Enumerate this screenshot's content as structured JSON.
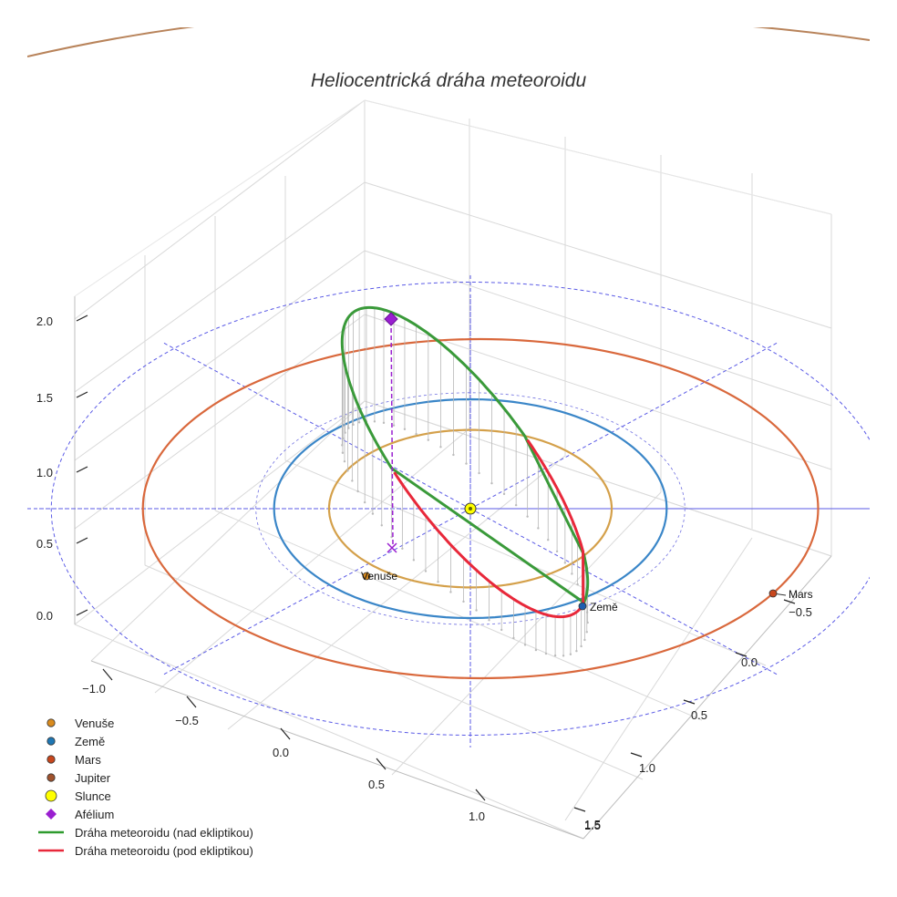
{
  "chart_data": {
    "type": "3d-orbit-plot",
    "title": "Heliocentrická dráha meteoroidu",
    "axes": {
      "x_ticks": [
        "−1.0",
        "−0.5",
        "0.0",
        "0.5",
        "1.0",
        "1.5"
      ],
      "y_ticks": [
        "−0.5",
        "0.0",
        "0.5",
        "1.0",
        "1.5"
      ],
      "z_ticks": [
        "0.0",
        "0.5",
        "1.0",
        "1.5",
        "2.0"
      ],
      "z_range": [
        0,
        2.2
      ],
      "grid": true
    },
    "orbits": [
      {
        "name": "Venuše",
        "radius_au": 0.72,
        "color": "#d4a04a"
      },
      {
        "name": "Země",
        "radius_au": 1.0,
        "color": "#3a86c8"
      },
      {
        "name": "Mars",
        "radius_au": 1.52,
        "color": "#d9683c"
      },
      {
        "name": "Jupiter",
        "radius_au": 5.2,
        "color": "#b8835a"
      }
    ],
    "planet_labels": [
      {
        "name": "Venuše",
        "color": "#d98b1e"
      },
      {
        "name": "Země",
        "color": "#1f5fb0"
      },
      {
        "name": "Mars",
        "color": "#c8461c"
      }
    ],
    "sun": {
      "name": "Slunce",
      "color": "#ffff00"
    },
    "aphelion": {
      "name": "Afélium",
      "color": "#9a1fd0",
      "z_au": 2.0
    },
    "meteoroid_orbit": {
      "above_label": "Dráha meteoroidu (nad ekliptikou)",
      "below_label": "Dráha meteoroidu (pod ekliptikou)",
      "above_color": "#3a9a3a",
      "below_color": "#e8283a"
    },
    "ecliptic_reference": {
      "radius_au": 1.9,
      "color": "#5a5ae6",
      "style": "dashed"
    },
    "legend": {
      "position": "bottom-left",
      "items": [
        {
          "label": "Venuše",
          "marker": "circle",
          "color": "#d98b1e"
        },
        {
          "label": "Země",
          "marker": "circle",
          "color": "#1f77b4"
        },
        {
          "label": "Mars",
          "marker": "circle",
          "color": "#c8461c"
        },
        {
          "label": "Jupiter",
          "marker": "circle",
          "color": "#a0522d"
        },
        {
          "label": "Slunce",
          "marker": "circle-large",
          "color": "#ffff00"
        },
        {
          "label": "Afélium",
          "marker": "diamond",
          "color": "#9a1fd0"
        },
        {
          "label": "Dráha meteoroidu (nad ekliptikou)",
          "marker": "line",
          "color": "#2e9b2e"
        },
        {
          "label": "Dráha meteoroidu (pod ekliptikou)",
          "marker": "line",
          "color": "#e8283a"
        }
      ]
    }
  }
}
